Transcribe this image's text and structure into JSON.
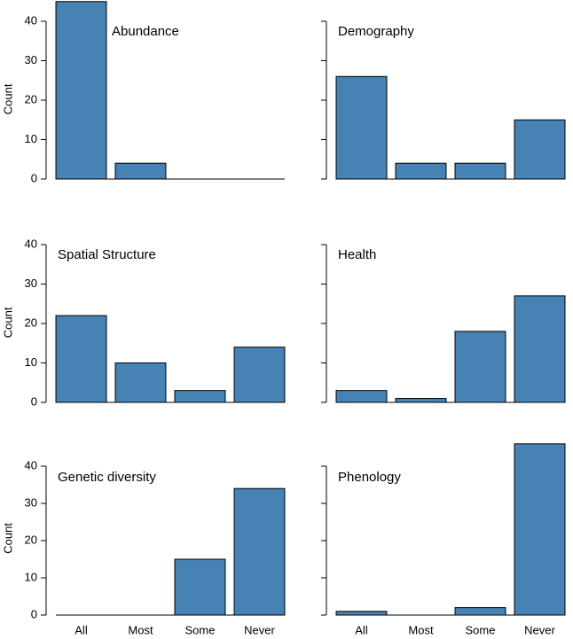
{
  "chart_data": [
    {
      "type": "bar",
      "title": "Abundance",
      "y_label": "Count",
      "values": [
        45,
        4,
        0,
        0
      ],
      "color": "#4682b4",
      "ylim": [
        0,
        45
      ],
      "yticks": [
        0,
        10,
        20,
        30,
        40
      ]
    },
    {
      "type": "bar",
      "title": "Demography",
      "values": [
        26,
        4,
        4,
        15
      ],
      "color": "#4682b4",
      "ylim": [
        0,
        45
      ],
      "yticks": [
        0,
        10,
        20,
        30,
        40
      ]
    },
    {
      "type": "bar",
      "title": "Spatial Structure",
      "y_label": "Count",
      "values": [
        22,
        10,
        3,
        14
      ],
      "color": "#4682b4",
      "ylim": [
        0,
        45
      ],
      "yticks": [
        0,
        10,
        20,
        30,
        40
      ]
    },
    {
      "type": "bar",
      "title": "Health",
      "values": [
        3,
        1,
        18,
        27
      ],
      "color": "#4682b4",
      "ylim": [
        0,
        45
      ],
      "yticks": [
        0,
        10,
        20,
        30,
        40
      ]
    },
    {
      "type": "bar",
      "title": "Genetic diversity",
      "y_label": "Count",
      "categories": [
        "All",
        "Most",
        "Some",
        "Never"
      ],
      "values": [
        0,
        0,
        15,
        34
      ],
      "color": "#4682b4",
      "ylim": [
        0,
        46
      ],
      "yticks": [
        0,
        10,
        20,
        30,
        40
      ]
    },
    {
      "type": "bar",
      "title": "Phenology",
      "categories": [
        "All",
        "Most",
        "Some",
        "Never"
      ],
      "values": [
        1,
        0,
        2,
        46
      ],
      "color": "#4682b4",
      "ylim": [
        0,
        46
      ],
      "yticks": [
        0,
        10,
        20,
        30,
        40
      ]
    }
  ]
}
